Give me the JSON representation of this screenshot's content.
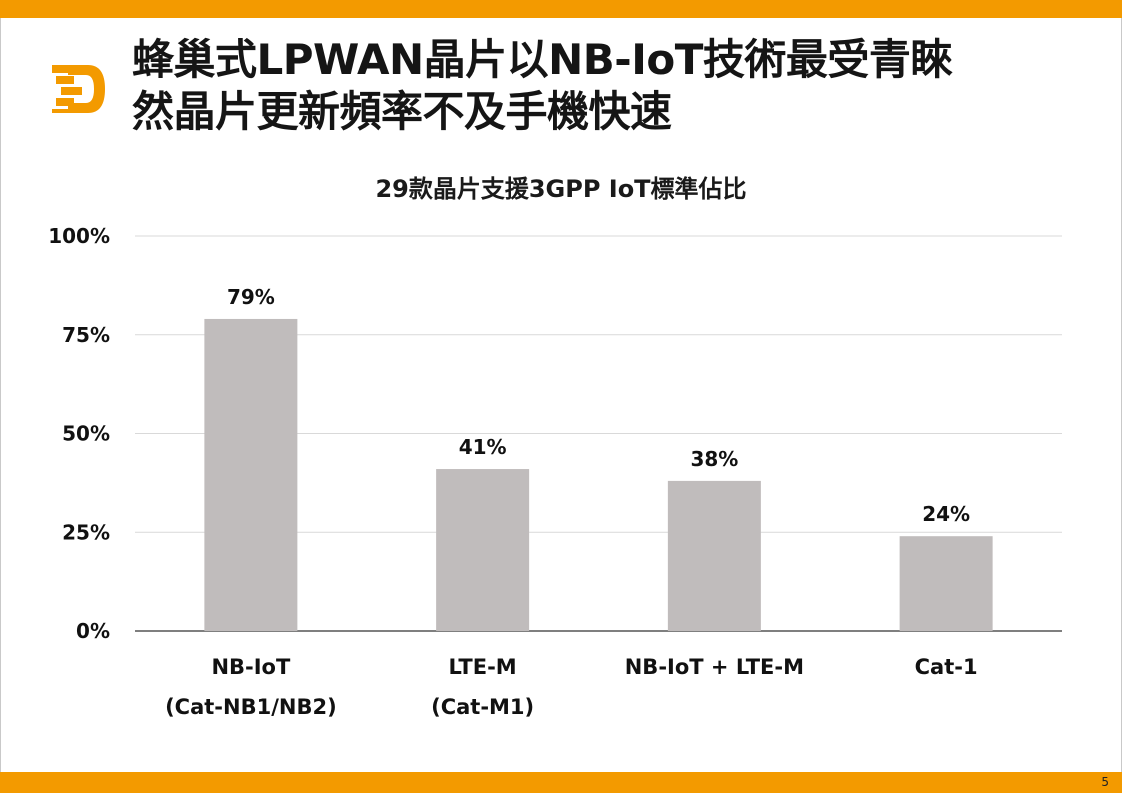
{
  "slide": {
    "title_lines": [
      "蜂巢式LPWAN晶片以NB-IoT技術最受青睞",
      "然晶片更新頻率不及手機快速"
    ],
    "page_number": "5"
  },
  "brand": {
    "accent_color": "#f39a00",
    "logo_icon": "orange-d-logo-icon"
  },
  "chart_data": {
    "type": "bar",
    "title": "29款晶片支援3GPP IoT標準佔比",
    "categories": [
      [
        "NB-IoT",
        "(Cat-NB1/NB2)"
      ],
      [
        "LTE-M",
        "(Cat-M1)"
      ],
      [
        "NB-IoT + LTE-M"
      ],
      [
        "Cat-1"
      ]
    ],
    "values": [
      79,
      41,
      38,
      24
    ],
    "data_labels": [
      "79%",
      "41%",
      "38%",
      "24%"
    ],
    "ylim": [
      0,
      100
    ],
    "yticks": [
      {
        "value": 0,
        "label": "0%"
      },
      {
        "value": 25,
        "label": "25%"
      },
      {
        "value": 50,
        "label": "50%"
      },
      {
        "value": 75,
        "label": "75%"
      },
      {
        "value": 100,
        "label": "100%"
      }
    ],
    "xlabel": "",
    "ylabel": "",
    "grid": true,
    "bar_color": "#c0bcbc",
    "grid_color": "#d9d9d9",
    "axis_color": "#555555"
  }
}
